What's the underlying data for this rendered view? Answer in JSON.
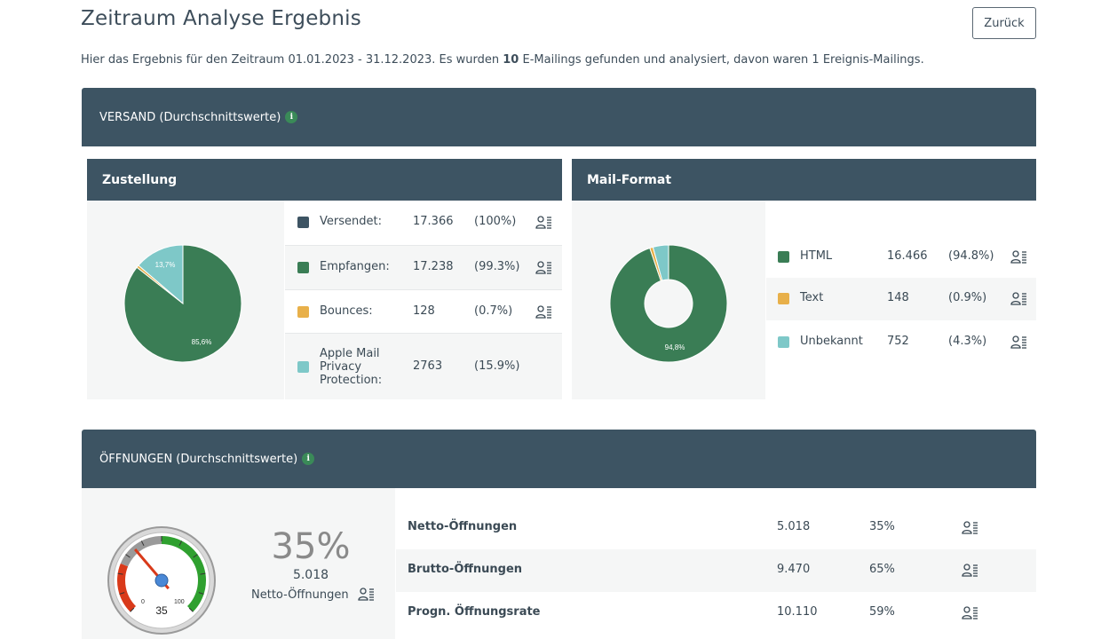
{
  "page": {
    "title": "Zeitraum Analyse Ergebnis",
    "back_label": "Zurück",
    "intro_prefix": "Hier das Ergebnis für den Zeitraum 01.01.2023 - 31.12.2023. Es wurden ",
    "intro_count": "10",
    "intro_suffix": " E-Mailings gefunden und analysiert, davon waren 1 Ereignis-Mailings."
  },
  "versand": {
    "header": "VERSAND (Durchschnittswerte)",
    "info_glyph": "i",
    "zustellung": {
      "title": "Zustellung",
      "pie_labels": {
        "green": "85,6%",
        "teal": "13,7%"
      },
      "rows": [
        {
          "label": "Versendet:",
          "value": "17.366",
          "pct": "(100%)",
          "color": "#3d5463",
          "icon": "person-list-icon"
        },
        {
          "label": "Empfangen:",
          "value": "17.238",
          "pct": "(99.3%)",
          "color": "#3a7d55",
          "icon": "person-list-icon"
        },
        {
          "label": "Bounces:",
          "value": "128",
          "pct": "(0.7%)",
          "color": "#e8b04a",
          "icon": "person-list-icon"
        },
        {
          "label_lines": [
            "Apple Mail",
            "Privacy",
            "Protection:"
          ],
          "value": "2763",
          "pct": "(15.9%)",
          "color": "#7ec8c8"
        }
      ]
    },
    "mailformat": {
      "title": "Mail-Format",
      "donut_label": "94,8%",
      "rows": [
        {
          "label": "HTML",
          "value": "16.466",
          "pct": "(94.8%)",
          "color": "#3a7d55",
          "icon": "person-list-icon"
        },
        {
          "label": "Text",
          "value": "148",
          "pct": "(0.9%)",
          "color": "#e8b04a",
          "icon": "person-list-icon"
        },
        {
          "label": "Unbekannt",
          "value": "752",
          "pct": "(4.3%)",
          "color": "#7ec8c8",
          "icon": "person-list-icon"
        }
      ]
    }
  },
  "oeffnungen": {
    "header": "ÖFFNUNGEN (Durchschnittswerte)",
    "info_glyph": "i",
    "gauge": {
      "value": 35,
      "big_text": "35%",
      "count_text": "5.018",
      "caption": "Netto-Öffnungen",
      "min_label": "0",
      "max_label": "100",
      "value_label": "35"
    },
    "rows": [
      {
        "label": "Netto-Öffnungen",
        "value": "5.018",
        "pct": "35%",
        "icon": "person-list-icon"
      },
      {
        "label": "Brutto-Öffnungen",
        "value": "9.470",
        "pct": "65%",
        "icon": "person-list-icon"
      },
      {
        "label": "Progn. Öffnungsrate",
        "value": "10.110",
        "pct": "59%",
        "icon": "person-list-icon"
      }
    ]
  },
  "chart_data": [
    {
      "type": "pie",
      "title": "Zustellung",
      "categories": [
        "Empfangen",
        "Bounces",
        "Apple Mail Privacy Protection"
      ],
      "values": [
        85.6,
        0.7,
        13.7
      ],
      "colors": [
        "#3a7d55",
        "#e8b04a",
        "#7ec8c8"
      ]
    },
    {
      "type": "pie",
      "title": "Mail-Format",
      "categories": [
        "HTML",
        "Text",
        "Unbekannt"
      ],
      "values": [
        94.8,
        0.9,
        4.3
      ],
      "colors": [
        "#3a7d55",
        "#e8b04a",
        "#7ec8c8"
      ]
    }
  ]
}
